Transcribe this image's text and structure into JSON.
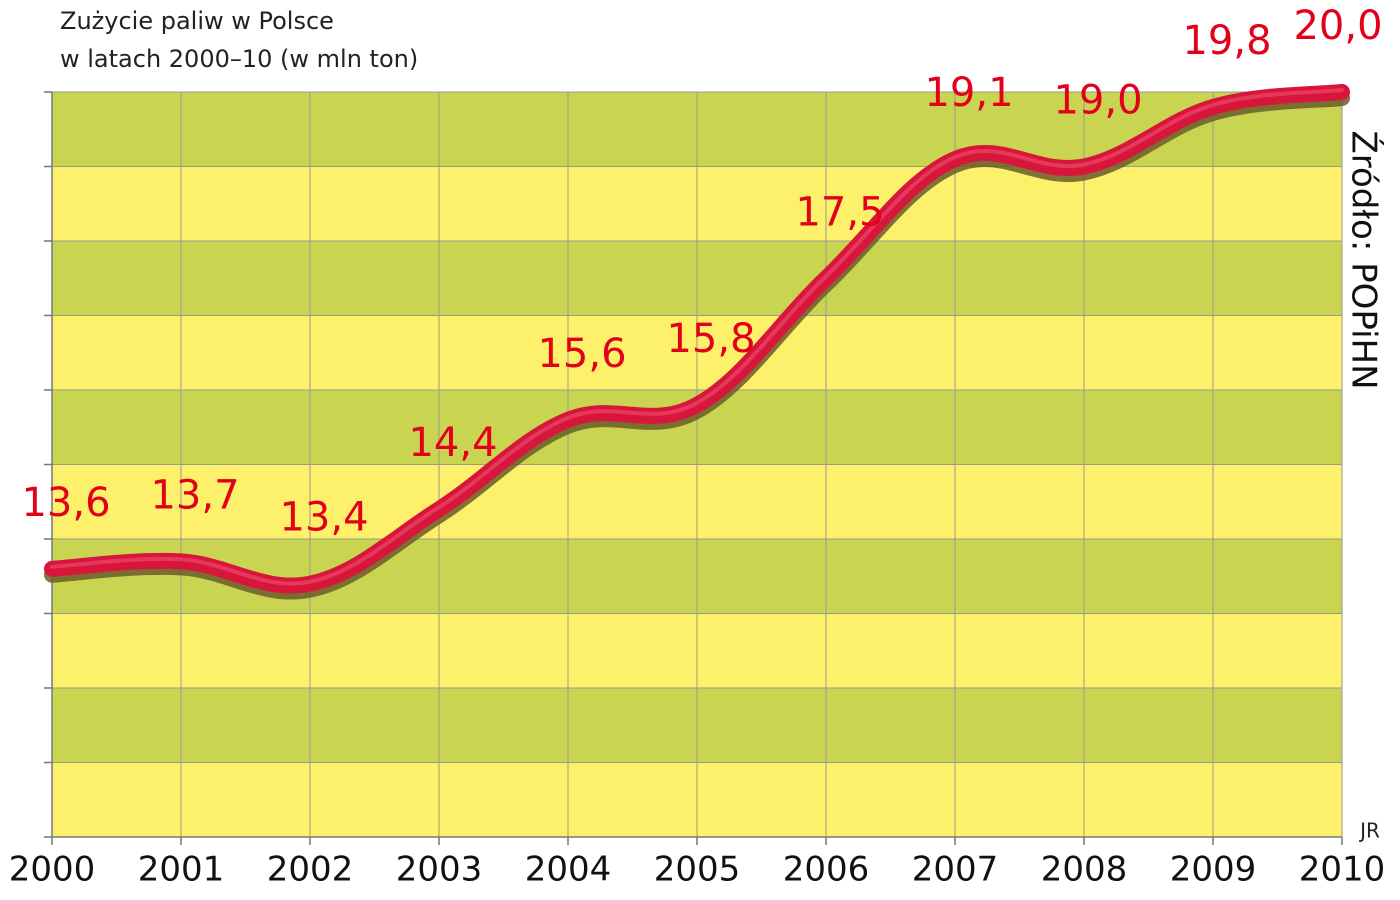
{
  "chart_data": {
    "type": "line",
    "title": [
      "Zużycie paliw w Polsce",
      "w latach 2000–10 (w mln ton)"
    ],
    "source": "Źródło: POPiHN",
    "credit": "JR",
    "x": [
      2000,
      2001,
      2002,
      2003,
      2004,
      2005,
      2006,
      2007,
      2008,
      2009,
      2010
    ],
    "values": [
      13.6,
      13.7,
      13.4,
      14.4,
      15.6,
      15.8,
      17.5,
      19.1,
      19.0,
      19.8,
      20.0
    ],
    "value_labels": [
      "13,6",
      "13,7",
      "13,4",
      "14,4",
      "15,6",
      "15,8",
      "17,5",
      "19,1",
      "19,0",
      "19,8",
      "20,0"
    ],
    "color": "#d8163c",
    "xlim": [
      2000,
      2010
    ],
    "xticks": [
      2000,
      2001,
      2002,
      2003,
      2004,
      2005,
      2006,
      2007,
      2008,
      2009,
      2010
    ],
    "ylim": [
      10,
      20
    ],
    "yticks": [
      10,
      11,
      12,
      13,
      14,
      15,
      16,
      17,
      18,
      19,
      20
    ],
    "band_colors": [
      "#c9d551",
      "#fdf06b"
    ],
    "grid": true
  }
}
